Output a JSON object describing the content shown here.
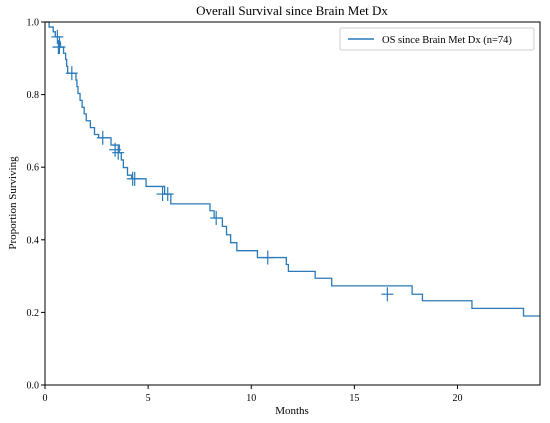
{
  "chart_data": {
    "type": "line",
    "title": "Overall Survival since Brain Met Dx",
    "xlabel": "Months",
    "ylabel": "Proportion Surviving",
    "xlim": [
      0,
      24
    ],
    "ylim": [
      0.0,
      1.0
    ],
    "grid": false,
    "legend_position": "top-right",
    "x_ticks": [
      0,
      5,
      10,
      15,
      20
    ],
    "x_tick_labels": [
      "0",
      "5",
      "10",
      "15",
      "20"
    ],
    "y_ticks": [
      0.0,
      0.2,
      0.4,
      0.6,
      0.8,
      1.0
    ],
    "y_tick_labels": [
      "0.0",
      "0.2",
      "0.4",
      "0.6",
      "0.8",
      "1.0"
    ],
    "colors": {
      "series": "#2a7ab9"
    },
    "series": [
      {
        "name": "OS since Brain Met Dx (n=74)",
        "steps": [
          [
            0.0,
            1.0
          ],
          [
            0.2,
            0.986
          ],
          [
            0.4,
            0.973
          ],
          [
            0.5,
            0.959
          ],
          [
            0.7,
            0.945
          ],
          [
            0.75,
            0.931
          ],
          [
            0.9,
            0.914
          ],
          [
            1.0,
            0.897
          ],
          [
            1.05,
            0.878
          ],
          [
            1.1,
            0.859
          ],
          [
            1.5,
            0.84
          ],
          [
            1.55,
            0.822
          ],
          [
            1.6,
            0.803
          ],
          [
            1.7,
            0.784
          ],
          [
            1.8,
            0.765
          ],
          [
            1.9,
            0.747
          ],
          [
            2.0,
            0.728
          ],
          [
            2.2,
            0.709
          ],
          [
            2.4,
            0.69
          ],
          [
            2.6,
            0.681
          ],
          [
            3.2,
            0.661
          ],
          [
            3.6,
            0.64
          ],
          [
            3.7,
            0.62
          ],
          [
            3.8,
            0.599
          ],
          [
            4.0,
            0.578
          ],
          [
            4.2,
            0.568
          ],
          [
            4.9,
            0.547
          ],
          [
            5.8,
            0.526
          ],
          [
            6.1,
            0.499
          ],
          [
            8.0,
            0.48
          ],
          [
            8.2,
            0.46
          ],
          [
            8.6,
            0.437
          ],
          [
            8.8,
            0.414
          ],
          [
            9.0,
            0.392
          ],
          [
            9.3,
            0.37
          ],
          [
            10.3,
            0.351
          ],
          [
            11.7,
            0.332
          ],
          [
            11.8,
            0.313
          ],
          [
            13.1,
            0.294
          ],
          [
            13.9,
            0.273
          ],
          [
            17.8,
            0.25
          ],
          [
            18.3,
            0.232
          ],
          [
            20.7,
            0.211
          ],
          [
            23.2,
            0.19
          ]
        ],
        "censored": [
          [
            0.6,
            0.959
          ],
          [
            0.65,
            0.931
          ],
          [
            0.7,
            0.931
          ],
          [
            1.3,
            0.859
          ],
          [
            2.8,
            0.681
          ],
          [
            3.4,
            0.648
          ],
          [
            3.55,
            0.64
          ],
          [
            4.25,
            0.568
          ],
          [
            4.35,
            0.568
          ],
          [
            5.7,
            0.526
          ],
          [
            5.95,
            0.526
          ],
          [
            8.3,
            0.46
          ],
          [
            10.8,
            0.351
          ],
          [
            16.6,
            0.25
          ]
        ],
        "x_end": 24
      }
    ]
  }
}
